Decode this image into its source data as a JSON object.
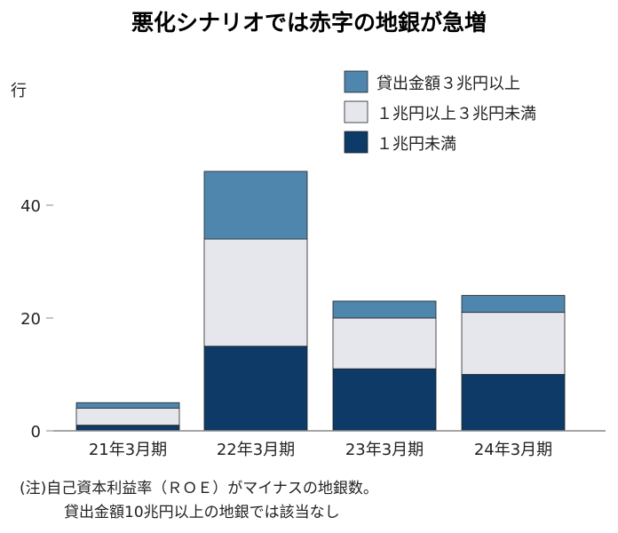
{
  "chart_data": {
    "type": "bar",
    "stacked": true,
    "title": "悪化シナリオでは赤字の地銀が急増",
    "ylabel": "行",
    "ylim": [
      0,
      50
    ],
    "yticks": [
      0,
      20,
      40
    ],
    "grid": false,
    "legend_position": "top-right",
    "categories": [
      "21年3月期",
      "22年3月期",
      "23年3月期",
      "24年3月期"
    ],
    "series": [
      {
        "name": "１兆円未満",
        "values": [
          1,
          15,
          11,
          10
        ],
        "color": "#0d3a66"
      },
      {
        "name": "１兆円以上３兆円未満",
        "values": [
          3,
          19,
          9,
          11
        ],
        "color": "#e6e7ec"
      },
      {
        "name": "貸出金額３兆円以上",
        "values": [
          1,
          12,
          3,
          3
        ],
        "color": "#4f86ad"
      }
    ],
    "legend_order": [
      2,
      1,
      0
    ],
    "notes": [
      "(注)自己資本利益率（ＲＯＥ）がマイナスの地銀数。",
      "貸出金額10兆円以上の地銀では該当なし"
    ]
  }
}
